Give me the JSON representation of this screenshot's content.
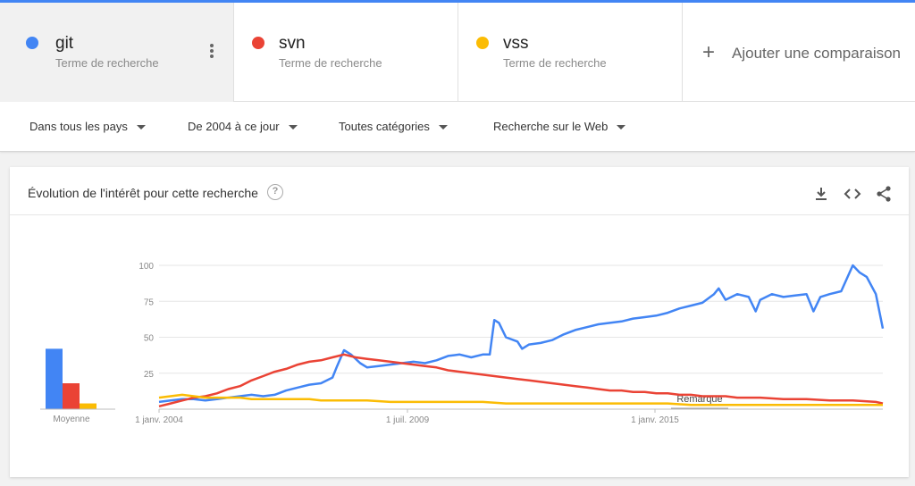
{
  "colors": {
    "git": "#4285f4",
    "svn": "#ea4335",
    "vss": "#fbbc04",
    "accent": "#4285f4"
  },
  "terms": [
    {
      "name": "git",
      "subtitle": "Terme de recherche",
      "color": "#4285f4"
    },
    {
      "name": "svn",
      "subtitle": "Terme de recherche",
      "color": "#ea4335"
    },
    {
      "name": "vss",
      "subtitle": "Terme de recherche",
      "color": "#fbbc04"
    }
  ],
  "add_comparison": {
    "label": "Ajouter une comparaison",
    "icon": "plus-icon"
  },
  "filters": {
    "region": "Dans tous les pays",
    "period": "De 2004 à ce jour",
    "category": "Toutes catégories",
    "search_type": "Recherche sur le Web"
  },
  "card": {
    "title": "Évolution de l'intérêt pour cette recherche",
    "icons": [
      "help-icon",
      "download-icon",
      "embed-icon",
      "share-icon"
    ]
  },
  "chart_data": {
    "type": "line",
    "yticks": [
      25,
      50,
      75,
      100
    ],
    "ylim": [
      0,
      100
    ],
    "xtick_labels": [
      "1 janv. 2004",
      "1 juil. 2009",
      "1 janv. 2015"
    ],
    "annotation": "Remarque",
    "average": {
      "label": "Moyenne",
      "values": [
        {
          "name": "git",
          "value": 42
        },
        {
          "name": "svn",
          "value": 18
        },
        {
          "name": "vss",
          "value": 4
        }
      ]
    },
    "series": [
      {
        "name": "git",
        "color": "#4285f4",
        "points": [
          [
            0,
            5
          ],
          [
            0.5,
            6
          ],
          [
            1,
            7
          ],
          [
            1.5,
            7
          ],
          [
            2,
            6
          ],
          [
            2.5,
            7
          ],
          [
            3,
            8
          ],
          [
            3.5,
            9
          ],
          [
            4,
            10
          ],
          [
            4.5,
            9
          ],
          [
            5,
            10
          ],
          [
            5.5,
            13
          ],
          [
            6,
            15
          ],
          [
            6.5,
            17
          ],
          [
            7,
            18
          ],
          [
            7.5,
            22
          ],
          [
            7.7,
            30
          ],
          [
            8,
            41
          ],
          [
            8.3,
            38
          ],
          [
            8.7,
            32
          ],
          [
            9,
            29
          ],
          [
            9.5,
            30
          ],
          [
            10,
            31
          ],
          [
            10.5,
            32
          ],
          [
            11,
            33
          ],
          [
            11.5,
            32
          ],
          [
            12,
            34
          ],
          [
            12.5,
            37
          ],
          [
            13,
            38
          ],
          [
            13.5,
            36
          ],
          [
            14,
            38
          ],
          [
            14.3,
            38
          ],
          [
            14.5,
            62
          ],
          [
            14.7,
            60
          ],
          [
            15,
            50
          ],
          [
            15.5,
            47
          ],
          [
            15.7,
            42
          ],
          [
            16,
            45
          ],
          [
            16.5,
            46
          ],
          [
            17,
            48
          ],
          [
            17.5,
            52
          ],
          [
            18,
            55
          ],
          [
            18.5,
            57
          ],
          [
            19,
            59
          ],
          [
            19.5,
            60
          ],
          [
            20,
            61
          ],
          [
            20.5,
            63
          ],
          [
            21,
            64
          ],
          [
            21.5,
            65
          ],
          [
            22,
            67
          ],
          [
            22.5,
            70
          ],
          [
            23,
            72
          ],
          [
            23.5,
            74
          ],
          [
            24,
            80
          ],
          [
            24.2,
            84
          ],
          [
            24.5,
            76
          ],
          [
            25,
            80
          ],
          [
            25.5,
            78
          ],
          [
            25.8,
            68
          ],
          [
            26,
            76
          ],
          [
            26.5,
            80
          ],
          [
            27,
            78
          ],
          [
            27.5,
            79
          ],
          [
            28,
            80
          ],
          [
            28.3,
            68
          ],
          [
            28.6,
            78
          ],
          [
            29,
            80
          ],
          [
            29.5,
            82
          ],
          [
            30,
            100
          ],
          [
            30.3,
            95
          ],
          [
            30.6,
            92
          ],
          [
            31,
            80
          ],
          [
            31.3,
            56
          ]
        ]
      },
      {
        "name": "svn",
        "color": "#ea4335",
        "points": [
          [
            0,
            2
          ],
          [
            0.5,
            4
          ],
          [
            1,
            6
          ],
          [
            1.5,
            8
          ],
          [
            2,
            9
          ],
          [
            2.5,
            11
          ],
          [
            3,
            14
          ],
          [
            3.5,
            16
          ],
          [
            4,
            20
          ],
          [
            4.5,
            23
          ],
          [
            5,
            26
          ],
          [
            5.5,
            28
          ],
          [
            6,
            31
          ],
          [
            6.5,
            33
          ],
          [
            7,
            34
          ],
          [
            7.5,
            36
          ],
          [
            8,
            38
          ],
          [
            8.5,
            36
          ],
          [
            9,
            35
          ],
          [
            9.5,
            34
          ],
          [
            10,
            33
          ],
          [
            10.5,
            32
          ],
          [
            11,
            31
          ],
          [
            11.5,
            30
          ],
          [
            12,
            29
          ],
          [
            12.5,
            27
          ],
          [
            13,
            26
          ],
          [
            13.5,
            25
          ],
          [
            14,
            24
          ],
          [
            14.5,
            23
          ],
          [
            15,
            22
          ],
          [
            15.5,
            21
          ],
          [
            16,
            20
          ],
          [
            16.5,
            19
          ],
          [
            17,
            18
          ],
          [
            17.5,
            17
          ],
          [
            18,
            16
          ],
          [
            18.5,
            15
          ],
          [
            19,
            14
          ],
          [
            19.5,
            13
          ],
          [
            20,
            13
          ],
          [
            20.5,
            12
          ],
          [
            21,
            12
          ],
          [
            21.5,
            11
          ],
          [
            22,
            11
          ],
          [
            22.5,
            10
          ],
          [
            23,
            10
          ],
          [
            23.5,
            9
          ],
          [
            24,
            9
          ],
          [
            24.5,
            9
          ],
          [
            25,
            8
          ],
          [
            26,
            8
          ],
          [
            27,
            7
          ],
          [
            28,
            7
          ],
          [
            29,
            6
          ],
          [
            30,
            6
          ],
          [
            31,
            5
          ],
          [
            31.3,
            4
          ]
        ]
      },
      {
        "name": "vss",
        "color": "#fbbc04",
        "points": [
          [
            0,
            8
          ],
          [
            0.5,
            9
          ],
          [
            1,
            10
          ],
          [
            1.5,
            9
          ],
          [
            2,
            8
          ],
          [
            2.5,
            8
          ],
          [
            3,
            8
          ],
          [
            3.5,
            8
          ],
          [
            4,
            7
          ],
          [
            4.5,
            7
          ],
          [
            5,
            7
          ],
          [
            5.5,
            7
          ],
          [
            6,
            7
          ],
          [
            6.5,
            7
          ],
          [
            7,
            6
          ],
          [
            7.5,
            6
          ],
          [
            8,
            6
          ],
          [
            8.5,
            6
          ],
          [
            9,
            6
          ],
          [
            10,
            5
          ],
          [
            11,
            5
          ],
          [
            12,
            5
          ],
          [
            13,
            5
          ],
          [
            14,
            5
          ],
          [
            15,
            4
          ],
          [
            16,
            4
          ],
          [
            17,
            4
          ],
          [
            18,
            4
          ],
          [
            19,
            4
          ],
          [
            20,
            4
          ],
          [
            21,
            4
          ],
          [
            22,
            4
          ],
          [
            23,
            3
          ],
          [
            24,
            3
          ],
          [
            25,
            3
          ],
          [
            26,
            3
          ],
          [
            27,
            3
          ],
          [
            28,
            3
          ],
          [
            29,
            3
          ],
          [
            30,
            3
          ],
          [
            31,
            3
          ],
          [
            31.3,
            3
          ]
        ]
      }
    ]
  }
}
